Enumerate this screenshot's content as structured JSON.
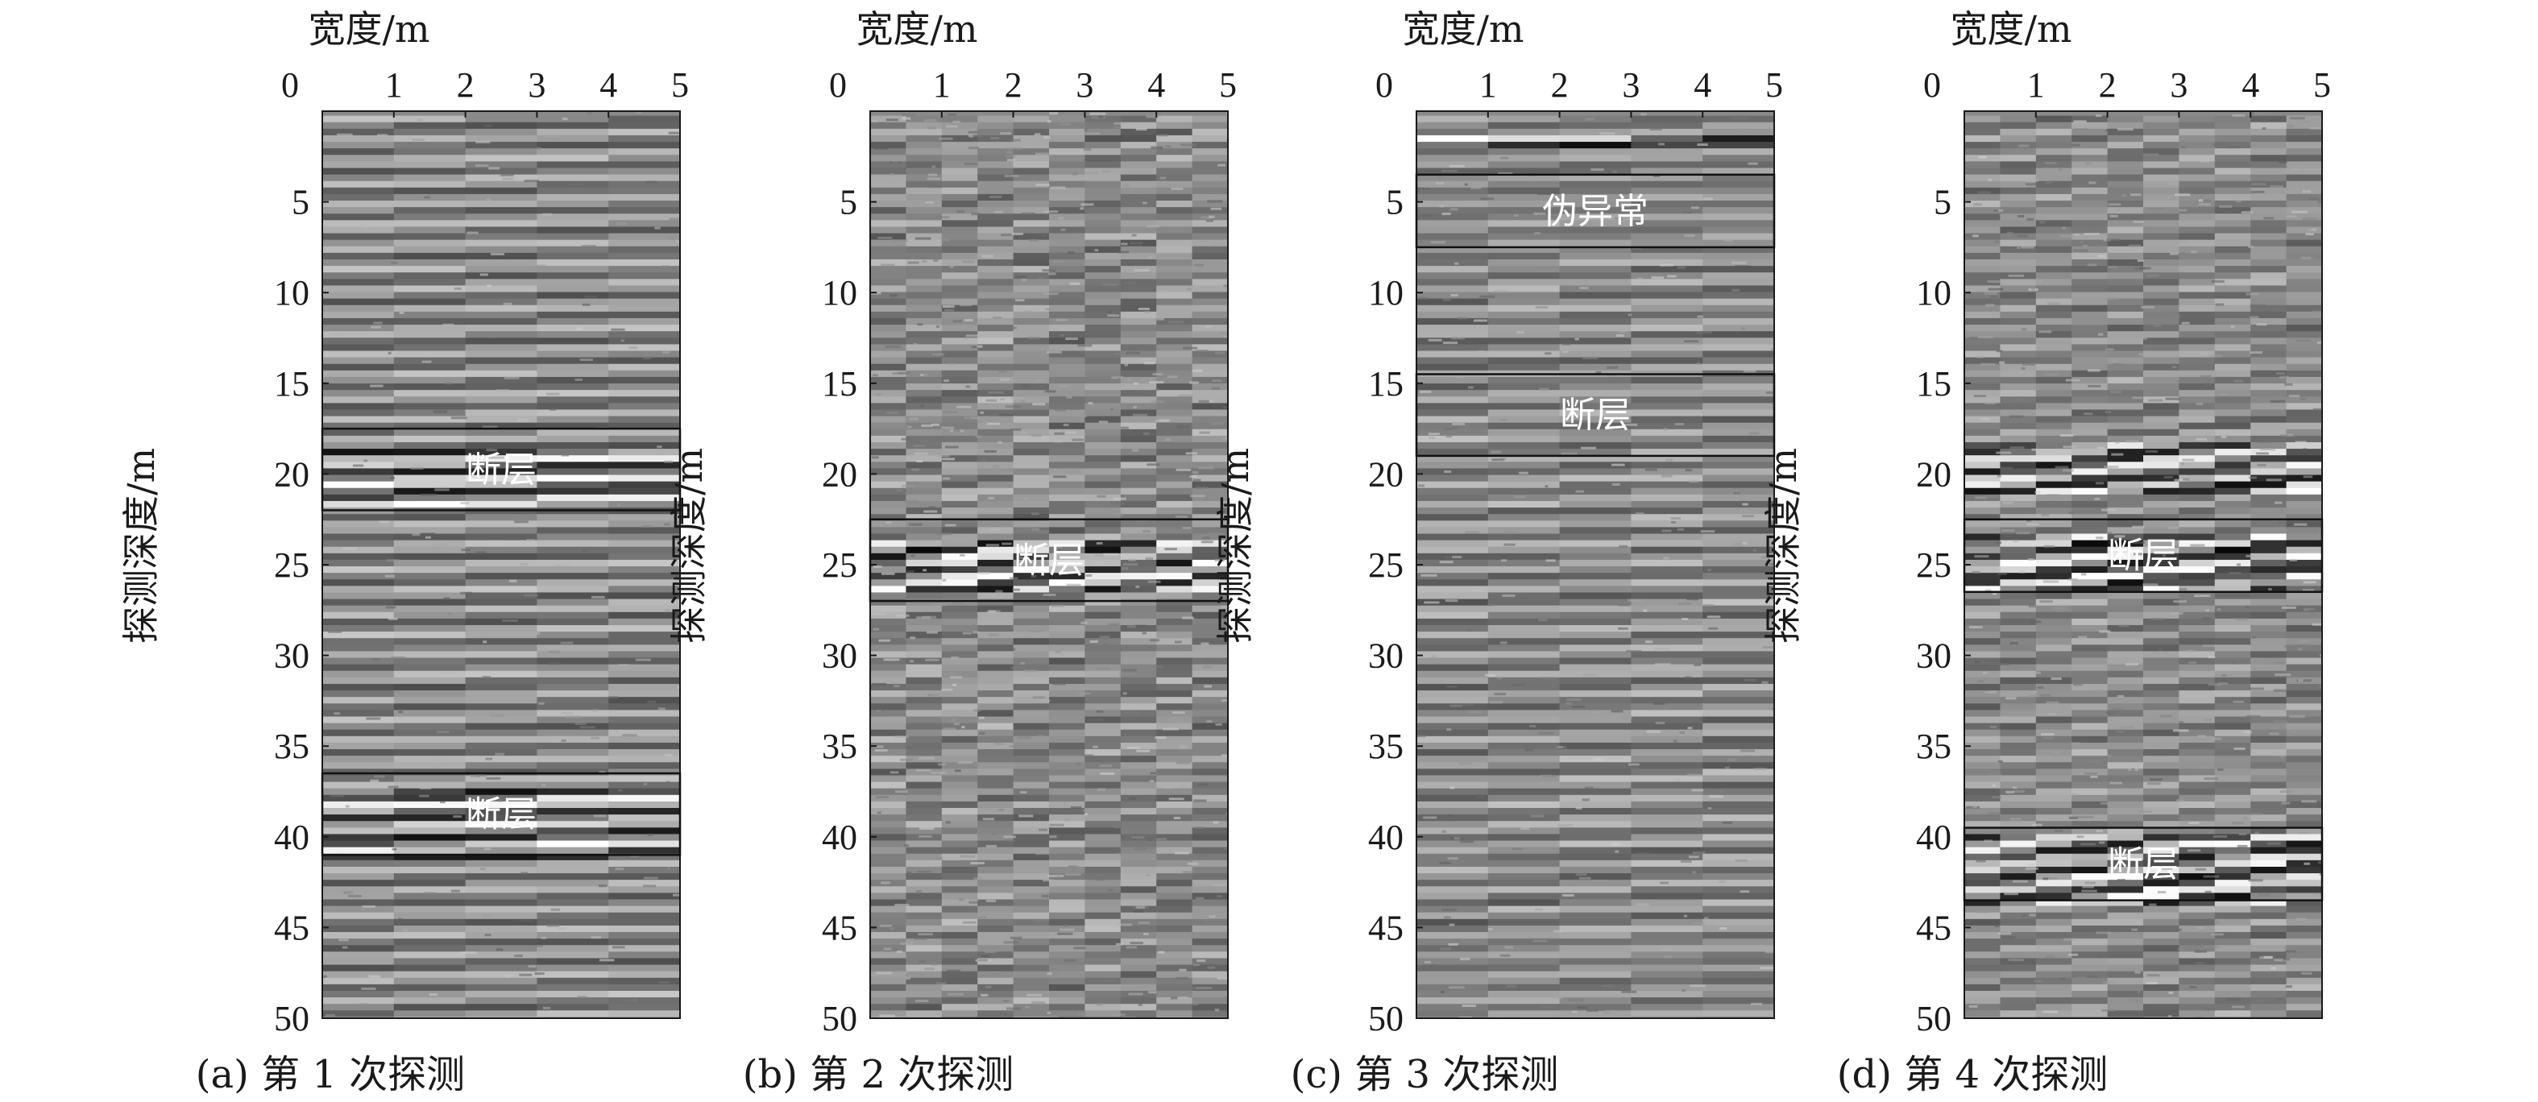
{
  "chart_data": [
    {
      "type": "heatmap",
      "caption": "(a) 第 1 次探测",
      "xlabel": "宽度/m",
      "ylabel": "探测深度/m",
      "xlim": [
        0,
        5
      ],
      "ylim": [
        0,
        50
      ],
      "xticks": [
        "0",
        "1",
        "2",
        "3",
        "4",
        "5"
      ],
      "yticks": [
        "5",
        "10",
        "15",
        "20",
        "25",
        "30",
        "35",
        "40",
        "45",
        "50"
      ],
      "texture": "layered",
      "noise": 0.25,
      "strong_bands": [
        {
          "from": 18.5,
          "to": 21.5
        },
        {
          "from": 37.0,
          "to": 41.0
        }
      ],
      "annotations": [
        {
          "label": "断层",
          "x0": 0.0,
          "x1": 5.0,
          "y0": 17.5,
          "y1": 22.0
        },
        {
          "label": "断层",
          "x0": 0.0,
          "x1": 5.0,
          "y0": 36.5,
          "y1": 41.0
        }
      ]
    },
    {
      "type": "heatmap",
      "caption": "(b) 第 2 次探测",
      "xlabel": "宽度/m",
      "ylabel": "探测深度/m",
      "xlim": [
        0,
        5
      ],
      "ylim": [
        0,
        50
      ],
      "xticks": [
        "0",
        "1",
        "2",
        "3",
        "4",
        "5"
      ],
      "yticks": [
        "5",
        "10",
        "15",
        "20",
        "25",
        "30",
        "35",
        "40",
        "45",
        "50"
      ],
      "texture": "noisy",
      "noise": 0.7,
      "strong_bands": [
        {
          "from": 23.5,
          "to": 26.5
        }
      ],
      "annotations": [
        {
          "label": "断层",
          "x0": 0.0,
          "x1": 5.0,
          "y0": 22.5,
          "y1": 27.0
        }
      ]
    },
    {
      "type": "heatmap",
      "caption": "(c) 第 3 次探测",
      "xlabel": "宽度/m",
      "ylabel": "探测深度/m",
      "xlim": [
        0,
        5
      ],
      "ylim": [
        0,
        50
      ],
      "xticks": [
        "0",
        "1",
        "2",
        "3",
        "4",
        "5"
      ],
      "yticks": [
        "5",
        "10",
        "15",
        "20",
        "25",
        "30",
        "35",
        "40",
        "45",
        "50"
      ],
      "texture": "smooth",
      "noise": 0.35,
      "strong_bands": [
        {
          "from": 1.0,
          "to": 2.0
        },
        {
          "from": 15.0,
          "to": 18.0
        }
      ],
      "annotations": [
        {
          "label": "伪异常",
          "x0": 0.0,
          "x1": 5.0,
          "y0": 3.5,
          "y1": 7.5
        },
        {
          "label": "断层",
          "x0": 0.0,
          "x1": 5.0,
          "y0": 14.5,
          "y1": 19.0
        }
      ]
    },
    {
      "type": "heatmap",
      "caption": "(d) 第 4 次探测",
      "xlabel": "宽度/m",
      "ylabel": "探测深度/m",
      "xlim": [
        0,
        5
      ],
      "ylim": [
        0,
        50
      ],
      "xticks": [
        "0",
        "1",
        "2",
        "3",
        "4",
        "5"
      ],
      "yticks": [
        "5",
        "10",
        "15",
        "20",
        "25",
        "30",
        "35",
        "40",
        "45",
        "50"
      ],
      "texture": "noisy",
      "noise": 0.55,
      "strong_bands": [
        {
          "from": 18.0,
          "to": 21.0
        },
        {
          "from": 23.0,
          "to": 26.5
        },
        {
          "from": 39.5,
          "to": 43.5
        }
      ],
      "annotations": [
        {
          "label": "断层",
          "x0": 0.0,
          "x1": 5.0,
          "y0": 22.5,
          "y1": 26.5
        },
        {
          "label": "断层",
          "x0": 0.0,
          "x1": 5.0,
          "y0": 39.5,
          "y1": 43.5
        }
      ]
    }
  ]
}
